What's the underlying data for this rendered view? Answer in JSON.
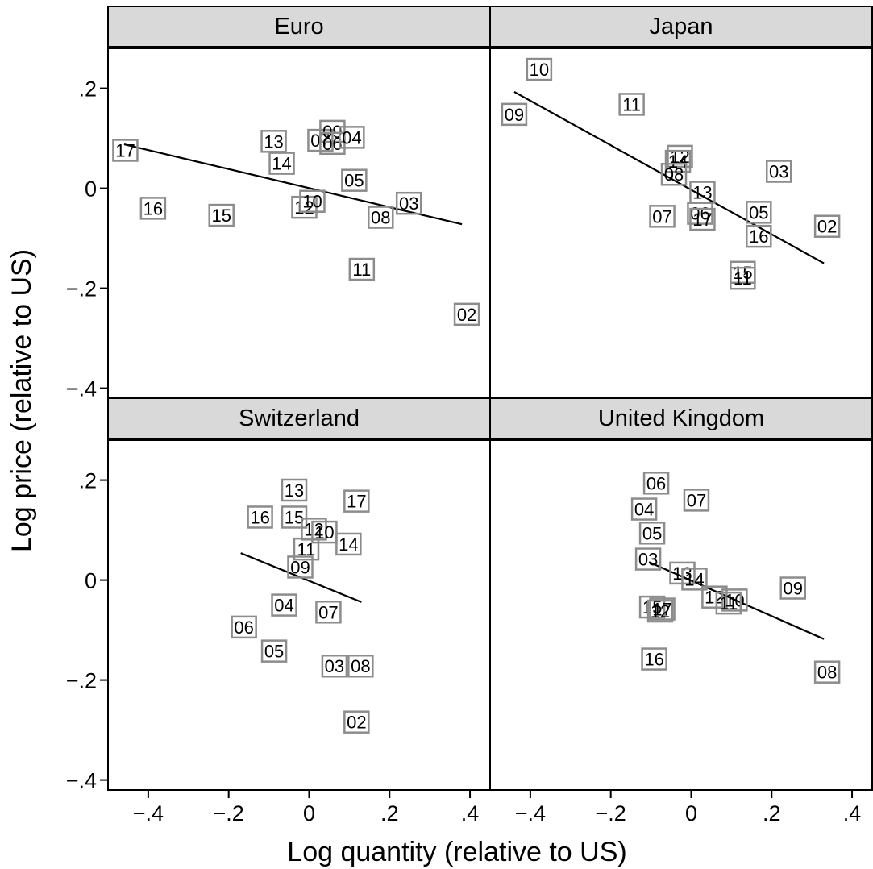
{
  "chart_data": {
    "type": "scatter",
    "xlabel": "Log quantity (relative to US)",
    "ylabel": "Log price (relative to US)",
    "xlim": [
      -0.5,
      0.45
    ],
    "ylim": [
      -0.42,
      0.28
    ],
    "x_ticks": [
      -0.4,
      -0.2,
      0,
      0.2,
      0.4
    ],
    "x_tick_labels": [
      "−.4",
      "−.2",
      "0",
      ".2",
      ".4"
    ],
    "y_ticks": [
      0.2,
      0,
      -0.2,
      -0.4
    ],
    "y_tick_labels": [
      ".2",
      "0",
      "−.2",
      "−.4"
    ],
    "grid": false,
    "panels": [
      {
        "title": "Euro",
        "fit_line": {
          "x": [
            -0.46,
            0.38
          ],
          "y": [
            0.088,
            -0.072
          ]
        },
        "points": [
          {
            "label": "17",
            "x": -0.457,
            "y": 0.076
          },
          {
            "label": "16",
            "x": -0.388,
            "y": -0.04
          },
          {
            "label": "15",
            "x": -0.218,
            "y": -0.054
          },
          {
            "label": "13",
            "x": -0.088,
            "y": 0.094
          },
          {
            "label": "14",
            "x": -0.068,
            "y": 0.05
          },
          {
            "label": "12",
            "x": -0.012,
            "y": -0.038
          },
          {
            "label": "10",
            "x": 0.008,
            "y": -0.026
          },
          {
            "label": "07",
            "x": 0.028,
            "y": 0.096
          },
          {
            "label": "09",
            "x": 0.058,
            "y": 0.114
          },
          {
            "label": "06",
            "x": 0.058,
            "y": 0.09
          },
          {
            "label": "04",
            "x": 0.106,
            "y": 0.102
          },
          {
            "label": "05",
            "x": 0.112,
            "y": 0.016
          },
          {
            "label": "11",
            "x": 0.131,
            "y": -0.162
          },
          {
            "label": "08",
            "x": 0.178,
            "y": -0.058
          },
          {
            "label": "03",
            "x": 0.248,
            "y": -0.03
          },
          {
            "label": "02",
            "x": 0.392,
            "y": -0.252
          }
        ]
      },
      {
        "title": "Japan",
        "fit_line": {
          "x": [
            -0.44,
            0.33
          ],
          "y": [
            0.193,
            -0.15
          ]
        },
        "points": [
          {
            "label": "10",
            "x": -0.378,
            "y": 0.238
          },
          {
            "label": "09",
            "x": -0.44,
            "y": 0.148
          },
          {
            "label": "11",
            "x": -0.148,
            "y": 0.168
          },
          {
            "label": "12",
            "x": -0.028,
            "y": 0.064
          },
          {
            "label": "14",
            "x": -0.033,
            "y": 0.054
          },
          {
            "label": "08",
            "x": -0.043,
            "y": 0.028
          },
          {
            "label": "13",
            "x": 0.028,
            "y": -0.008
          },
          {
            "label": "06",
            "x": 0.022,
            "y": -0.05
          },
          {
            "label": "17",
            "x": 0.028,
            "y": -0.062
          },
          {
            "label": "07",
            "x": -0.072,
            "y": -0.056
          },
          {
            "label": "03",
            "x": 0.218,
            "y": 0.034
          },
          {
            "label": "05",
            "x": 0.168,
            "y": -0.048
          },
          {
            "label": "16",
            "x": 0.168,
            "y": -0.096
          },
          {
            "label": "02",
            "x": 0.338,
            "y": -0.076
          },
          {
            "label": "15",
            "x": 0.128,
            "y": -0.168
          },
          {
            "label": "11",
            "x": 0.128,
            "y": -0.18
          }
        ]
      },
      {
        "title": "Switzerland",
        "fit_line": {
          "x": [
            -0.17,
            0.13
          ],
          "y": [
            0.054,
            -0.044
          ]
        },
        "points": [
          {
            "label": "13",
            "x": -0.037,
            "y": 0.18
          },
          {
            "label": "17",
            "x": 0.118,
            "y": 0.158
          },
          {
            "label": "16",
            "x": -0.122,
            "y": 0.126
          },
          {
            "label": "15",
            "x": -0.037,
            "y": 0.126
          },
          {
            "label": "12",
            "x": 0.012,
            "y": 0.102
          },
          {
            "label": "10",
            "x": 0.038,
            "y": 0.096
          },
          {
            "label": "11",
            "x": -0.007,
            "y": 0.062
          },
          {
            "label": "14",
            "x": 0.098,
            "y": 0.072
          },
          {
            "label": "09",
            "x": -0.022,
            "y": 0.026
          },
          {
            "label": "04",
            "x": -0.062,
            "y": -0.05
          },
          {
            "label": "07",
            "x": 0.048,
            "y": -0.064
          },
          {
            "label": "06",
            "x": -0.162,
            "y": -0.094
          },
          {
            "label": "05",
            "x": -0.087,
            "y": -0.142
          },
          {
            "label": "03",
            "x": 0.063,
            "y": -0.172
          },
          {
            "label": "08",
            "x": 0.128,
            "y": -0.172
          },
          {
            "label": "02",
            "x": 0.118,
            "y": -0.284
          }
        ]
      },
      {
        "title": "United Kingdom",
        "fit_line": {
          "x": [
            -0.105,
            0.33
          ],
          "y": [
            0.036,
            -0.118
          ]
        },
        "points": [
          {
            "label": "06",
            "x": -0.087,
            "y": 0.194
          },
          {
            "label": "07",
            "x": 0.013,
            "y": 0.16
          },
          {
            "label": "04",
            "x": -0.117,
            "y": 0.142
          },
          {
            "label": "05",
            "x": -0.097,
            "y": 0.094
          },
          {
            "label": "03",
            "x": -0.107,
            "y": 0.042
          },
          {
            "label": "13",
            "x": -0.022,
            "y": 0.014
          },
          {
            "label": "14",
            "x": 0.008,
            "y": 0.002
          },
          {
            "label": "12",
            "x": 0.058,
            "y": -0.034
          },
          {
            "label": "10",
            "x": 0.108,
            "y": -0.04
          },
          {
            "label": "11",
            "x": 0.093,
            "y": -0.046
          },
          {
            "label": "09",
            "x": 0.253,
            "y": -0.016
          },
          {
            "label": "15",
            "x": -0.097,
            "y": -0.054
          },
          {
            "label": "17",
            "x": -0.072,
            "y": -0.058
          },
          {
            "label": "12",
            "x": -0.077,
            "y": -0.062
          },
          {
            "label": "16",
            "x": -0.092,
            "y": -0.158
          },
          {
            "label": "08",
            "x": 0.338,
            "y": -0.184
          }
        ]
      }
    ]
  }
}
